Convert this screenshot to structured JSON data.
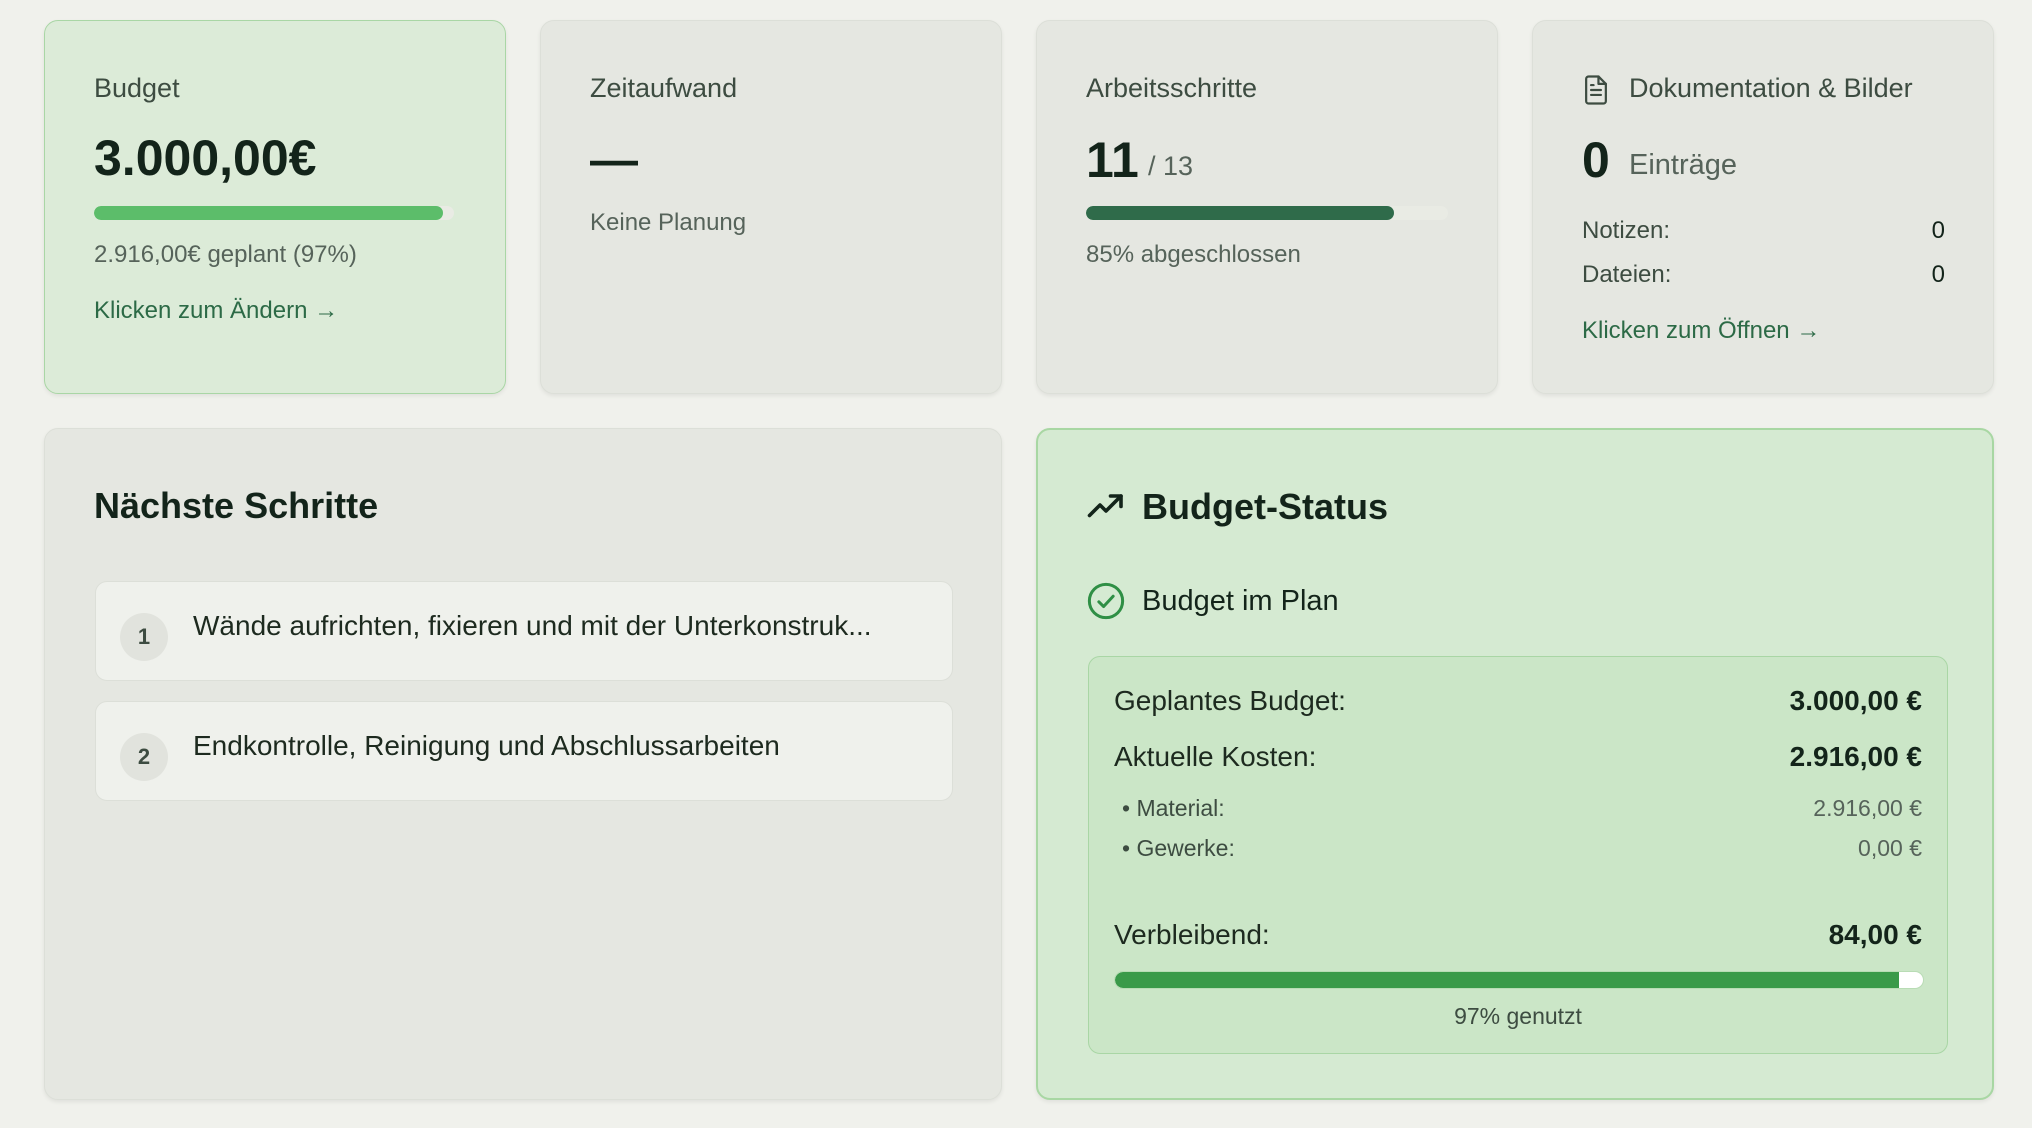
{
  "budget_card": {
    "title": "Budget",
    "amount": "3.000,00€",
    "progress": 0.97,
    "bar_color": "#5cbd6a",
    "planned_text": "2.916,00€ geplant (97%)",
    "link": "Klicken zum Ändern →"
  },
  "time_card": {
    "title": "Zeitaufwand",
    "value": "—",
    "note": "Keine Planung"
  },
  "steps_card": {
    "title": "Arbeitsschritte",
    "done": "11",
    "total": "/ 13",
    "progress": 0.85,
    "bar_color": "#2f6b4a",
    "status": "85% abgeschlossen"
  },
  "docs_card": {
    "icon": "document-icon",
    "title": "Dokumentation & Bilder",
    "count": "0",
    "count_label": "Einträge",
    "notes_label": "Notizen:",
    "notes_value": "0",
    "files_label": "Dateien:",
    "files_value": "0",
    "link": "Klicken zum Öffnen →"
  },
  "next_steps": {
    "title": "Nächste Schritte",
    "items": [
      {
        "num": "1",
        "text": "Wände aufrichten, fixieren und mit der Unterkonstruk..."
      },
      {
        "num": "2",
        "text": "Endkontrolle, Reinigung und Abschlussarbeiten"
      }
    ]
  },
  "budget_status": {
    "icon": "trending-up-icon",
    "title": "Budget-Status",
    "status_icon": "check-circle-icon",
    "status_text": "Budget im Plan",
    "planned_label": "Geplantes Budget:",
    "planned_value": "3.000,00 €",
    "current_label": "Aktuelle Kosten:",
    "current_value": "2.916,00 €",
    "material_label": "• Material:",
    "material_value": "2.916,00 €",
    "trades_label": "• Gewerke:",
    "trades_value": "0,00 €",
    "remaining_label": "Verbleibend:",
    "remaining_value": "84,00 €",
    "used_progress": 0.97,
    "bar_color": "#3a9a49",
    "used_text": "97% genutzt"
  }
}
